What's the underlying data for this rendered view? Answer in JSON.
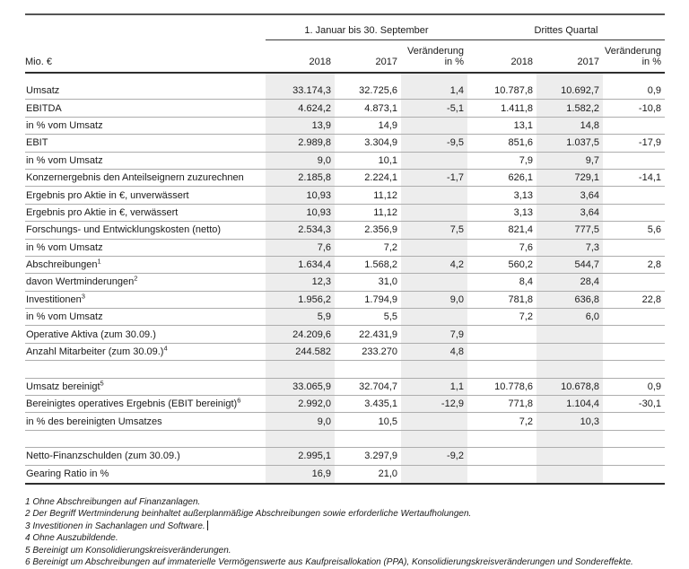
{
  "table": {
    "unit_label": "Mio. €",
    "group_headers": [
      {
        "label": "1. Januar bis 30. September"
      },
      {
        "label": "Drittes Quartal"
      }
    ],
    "column_headers": [
      {
        "text": "2018"
      },
      {
        "text": "2017"
      },
      {
        "text": "Veränderung",
        "text2": "in %"
      },
      {
        "text": "2018"
      },
      {
        "text": "2017"
      },
      {
        "text": "Veränderung",
        "text2": "in %"
      }
    ],
    "rows": [
      {
        "label": "Umsatz",
        "values": [
          "33.174,3",
          "32.725,6",
          "1,4",
          "10.787,8",
          "10.692,7",
          "0,9"
        ]
      },
      {
        "label": "EBITDA",
        "values": [
          "4.624,2",
          "4.873,1",
          "-5,1",
          "1.411,8",
          "1.582,2",
          "-10,8"
        ]
      },
      {
        "label": "in % vom Umsatz",
        "values": [
          "13,9",
          "14,9",
          "",
          "13,1",
          "14,8",
          ""
        ]
      },
      {
        "label": "EBIT",
        "values": [
          "2.989,8",
          "3.304,9",
          "-9,5",
          "851,6",
          "1.037,5",
          "-17,9"
        ]
      },
      {
        "label": "in % vom Umsatz",
        "values": [
          "9,0",
          "10,1",
          "",
          "7,9",
          "9,7",
          ""
        ]
      },
      {
        "label": "Konzernergebnis den Anteilseignern zuzurechnen",
        "values": [
          "2.185,8",
          "2.224,1",
          "-1,7",
          "626,1",
          "729,1",
          "-14,1"
        ]
      },
      {
        "label": "Ergebnis pro Aktie in €, unverwässert",
        "values": [
          "10,93",
          "11,12",
          "",
          "3,13",
          "3,64",
          ""
        ]
      },
      {
        "label": "Ergebnis pro Aktie in €, verwässert",
        "values": [
          "10,93",
          "11,12",
          "",
          "3,13",
          "3,64",
          ""
        ]
      },
      {
        "label": "Forschungs- und Entwicklungskosten (netto)",
        "values": [
          "2.534,3",
          "2.356,9",
          "7,5",
          "821,4",
          "777,5",
          "5,6"
        ]
      },
      {
        "label": "in % vom Umsatz",
        "values": [
          "7,6",
          "7,2",
          "",
          "7,6",
          "7,3",
          ""
        ]
      },
      {
        "label": "Abschreibungen",
        "sup": "1",
        "values": [
          "1.634,4",
          "1.568,2",
          "4,2",
          "560,2",
          "544,7",
          "2,8"
        ]
      },
      {
        "label": "davon Wertminderungen",
        "sup": "2",
        "values": [
          "12,3",
          "31,0",
          "",
          "8,4",
          "28,4",
          ""
        ]
      },
      {
        "label": "Investitionen",
        "sup": "3",
        "values": [
          "1.956,2",
          "1.794,9",
          "9,0",
          "781,8",
          "636,8",
          "22,8"
        ]
      },
      {
        "label": "in % vom Umsatz",
        "values": [
          "5,9",
          "5,5",
          "",
          "7,2",
          "6,0",
          ""
        ]
      },
      {
        "label": "Operative Aktiva (zum 30.09.)",
        "values": [
          "24.209,6",
          "22.431,9",
          "7,9",
          "",
          "",
          ""
        ]
      },
      {
        "label": "Anzahl Mitarbeiter (zum 30.09.)",
        "sup": "4",
        "values": [
          "244.582",
          "233.270",
          "4,8",
          "",
          "",
          ""
        ]
      },
      {
        "spacer": true
      },
      {
        "label": "Umsatz bereinigt",
        "sup": "5",
        "values": [
          "33.065,9",
          "32.704,7",
          "1,1",
          "10.778,6",
          "10.678,8",
          "0,9"
        ]
      },
      {
        "label": "Bereinigtes operatives Ergebnis (EBIT bereinigt)",
        "sup": "6",
        "values": [
          "2.992,0",
          "3.435,1",
          "-12,9",
          "771,8",
          "1.104,4",
          "-30,1"
        ]
      },
      {
        "label": "in % des bereinigten Umsatzes",
        "values": [
          "9,0",
          "10,5",
          "",
          "7,2",
          "10,3",
          ""
        ]
      },
      {
        "spacer": true
      },
      {
        "label": "Netto-Finanzschulden (zum 30.09.)",
        "values": [
          "2.995,1",
          "3.297,9",
          "-9,2",
          "",
          "",
          ""
        ]
      },
      {
        "label": "Gearing Ratio in %",
        "values": [
          "16,9",
          "21,0",
          "",
          "",
          "",
          ""
        ]
      }
    ],
    "shaded_value_columns": [
      1,
      3,
      5
    ],
    "footnotes": [
      {
        "text": "1 Ohne Abschreibungen auf Finanzanlagen."
      },
      {
        "text": "2 Der Begriff Wertminderung beinhaltet außerplanmäßige Abschreibungen sowie erforderliche Wertaufholungen."
      },
      {
        "text": "3 Investitionen in Sachanlagen und Software.",
        "cursor": true
      },
      {
        "text": "4 Ohne Auszubildende."
      },
      {
        "text": "5 Bereinigt um Konsolidierungskreisveränderungen."
      },
      {
        "text": "6 Bereinigt um Abschreibungen auf immaterielle Vermögenswerte aus Kaufpreisallokation (PPA), Konsolidierungskreisveränderungen und Sondereffekte."
      }
    ],
    "colors": {
      "column_shading": "#ededed",
      "row_separator": "#adadad",
      "rule_dark": "#2e2e2e",
      "text": "#1a1a1a"
    }
  }
}
